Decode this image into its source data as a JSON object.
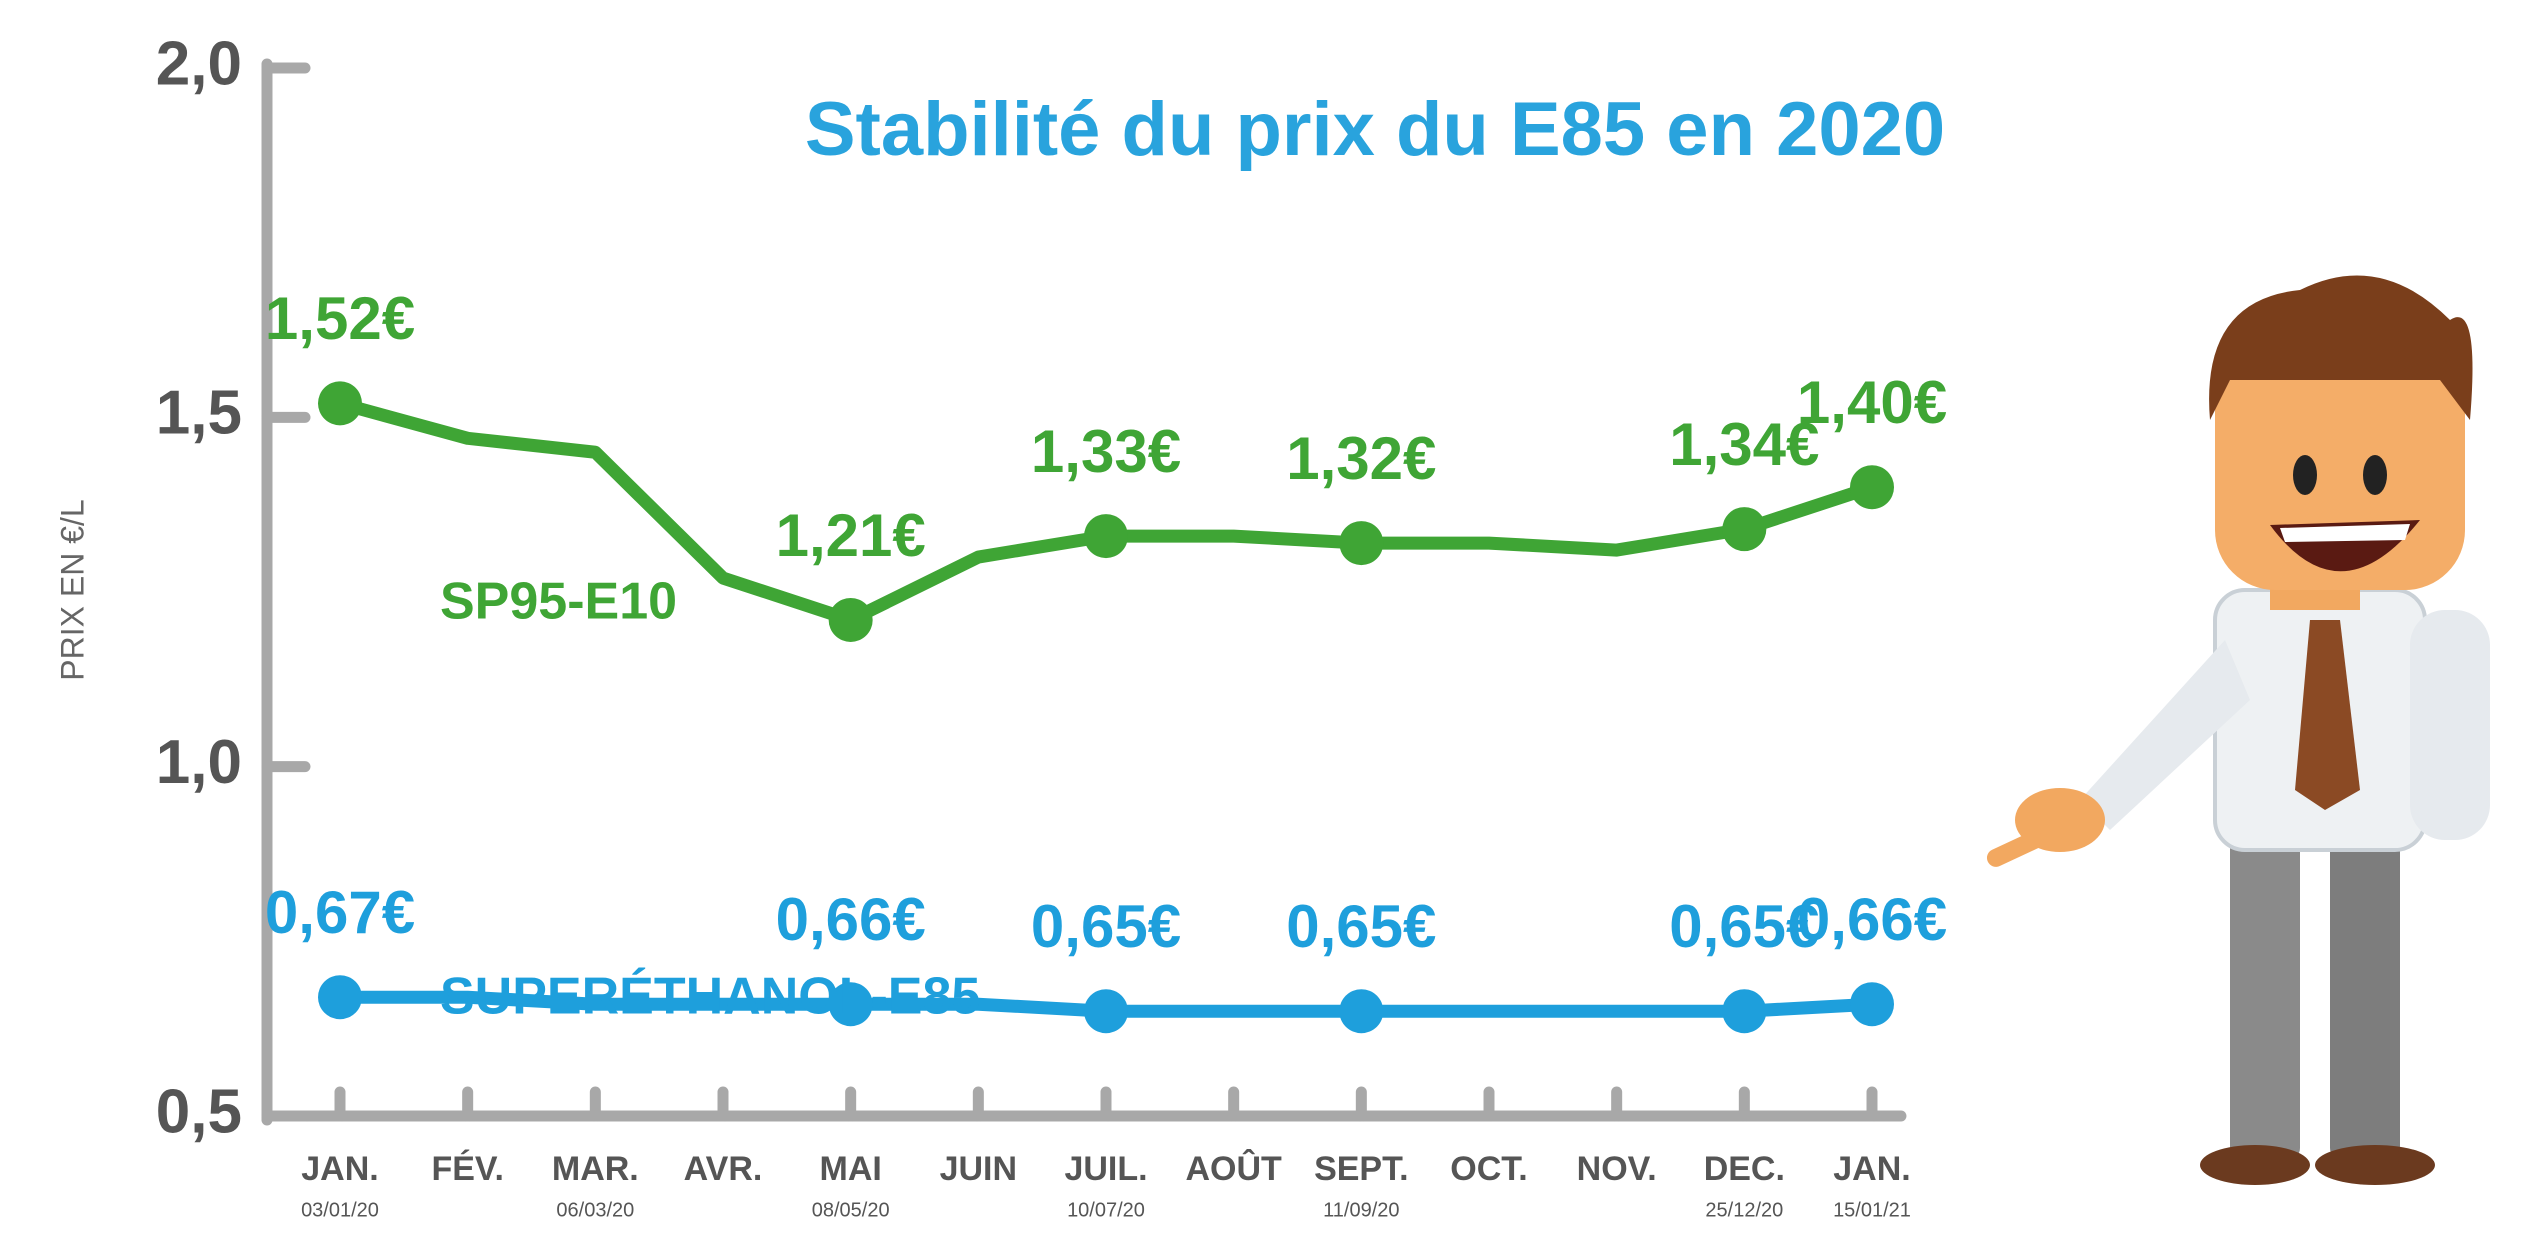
{
  "chart_data": {
    "type": "line",
    "title": "Stabilité du prix du E85 en 2020",
    "y_label": "PRIX EN €/L",
    "categories": [
      "JAN.",
      "FÉV.",
      "MAR.",
      "AVR.",
      "MAI",
      "JUIN",
      "JUIL.",
      "AOÛT",
      "SEPT.",
      "OCT.",
      "NOV.",
      "DEC.",
      "JAN."
    ],
    "date_labels": [
      "03/01/20",
      null,
      "06/03/20",
      null,
      "08/05/20",
      null,
      "10/07/20",
      null,
      "11/09/20",
      null,
      null,
      "25/12/20",
      "15/01/21"
    ],
    "ylim": [
      0.5,
      2.0
    ],
    "yticks": [
      {
        "value": 0.5,
        "label": "0,5"
      },
      {
        "value": 1.0,
        "label": "1,0"
      },
      {
        "value": 1.5,
        "label": "1,5"
      },
      {
        "value": 2.0,
        "label": "2,0"
      }
    ],
    "series": [
      {
        "name": "SP95-E10",
        "color": "#3fa535",
        "values": [
          1.52,
          1.47,
          1.45,
          1.27,
          1.21,
          1.3,
          1.33,
          1.33,
          1.32,
          1.32,
          1.31,
          1.34,
          1.4
        ],
        "value_labels": [
          "1,52€",
          null,
          null,
          null,
          "1,21€",
          null,
          "1,33€",
          null,
          "1,32€",
          null,
          null,
          "1,34€",
          "1,40€"
        ]
      },
      {
        "name": "SUPERÉTHANOL-E85",
        "color": "#1e9fdc",
        "values": [
          0.67,
          0.67,
          0.66,
          0.66,
          0.66,
          0.66,
          0.65,
          0.65,
          0.65,
          0.65,
          0.65,
          0.65,
          0.66
        ],
        "value_labels": [
          "0,67€",
          null,
          null,
          null,
          "0,66€",
          null,
          "0,65€",
          null,
          "0,65€",
          null,
          null,
          "0,65€",
          "0,66€"
        ]
      }
    ]
  }
}
